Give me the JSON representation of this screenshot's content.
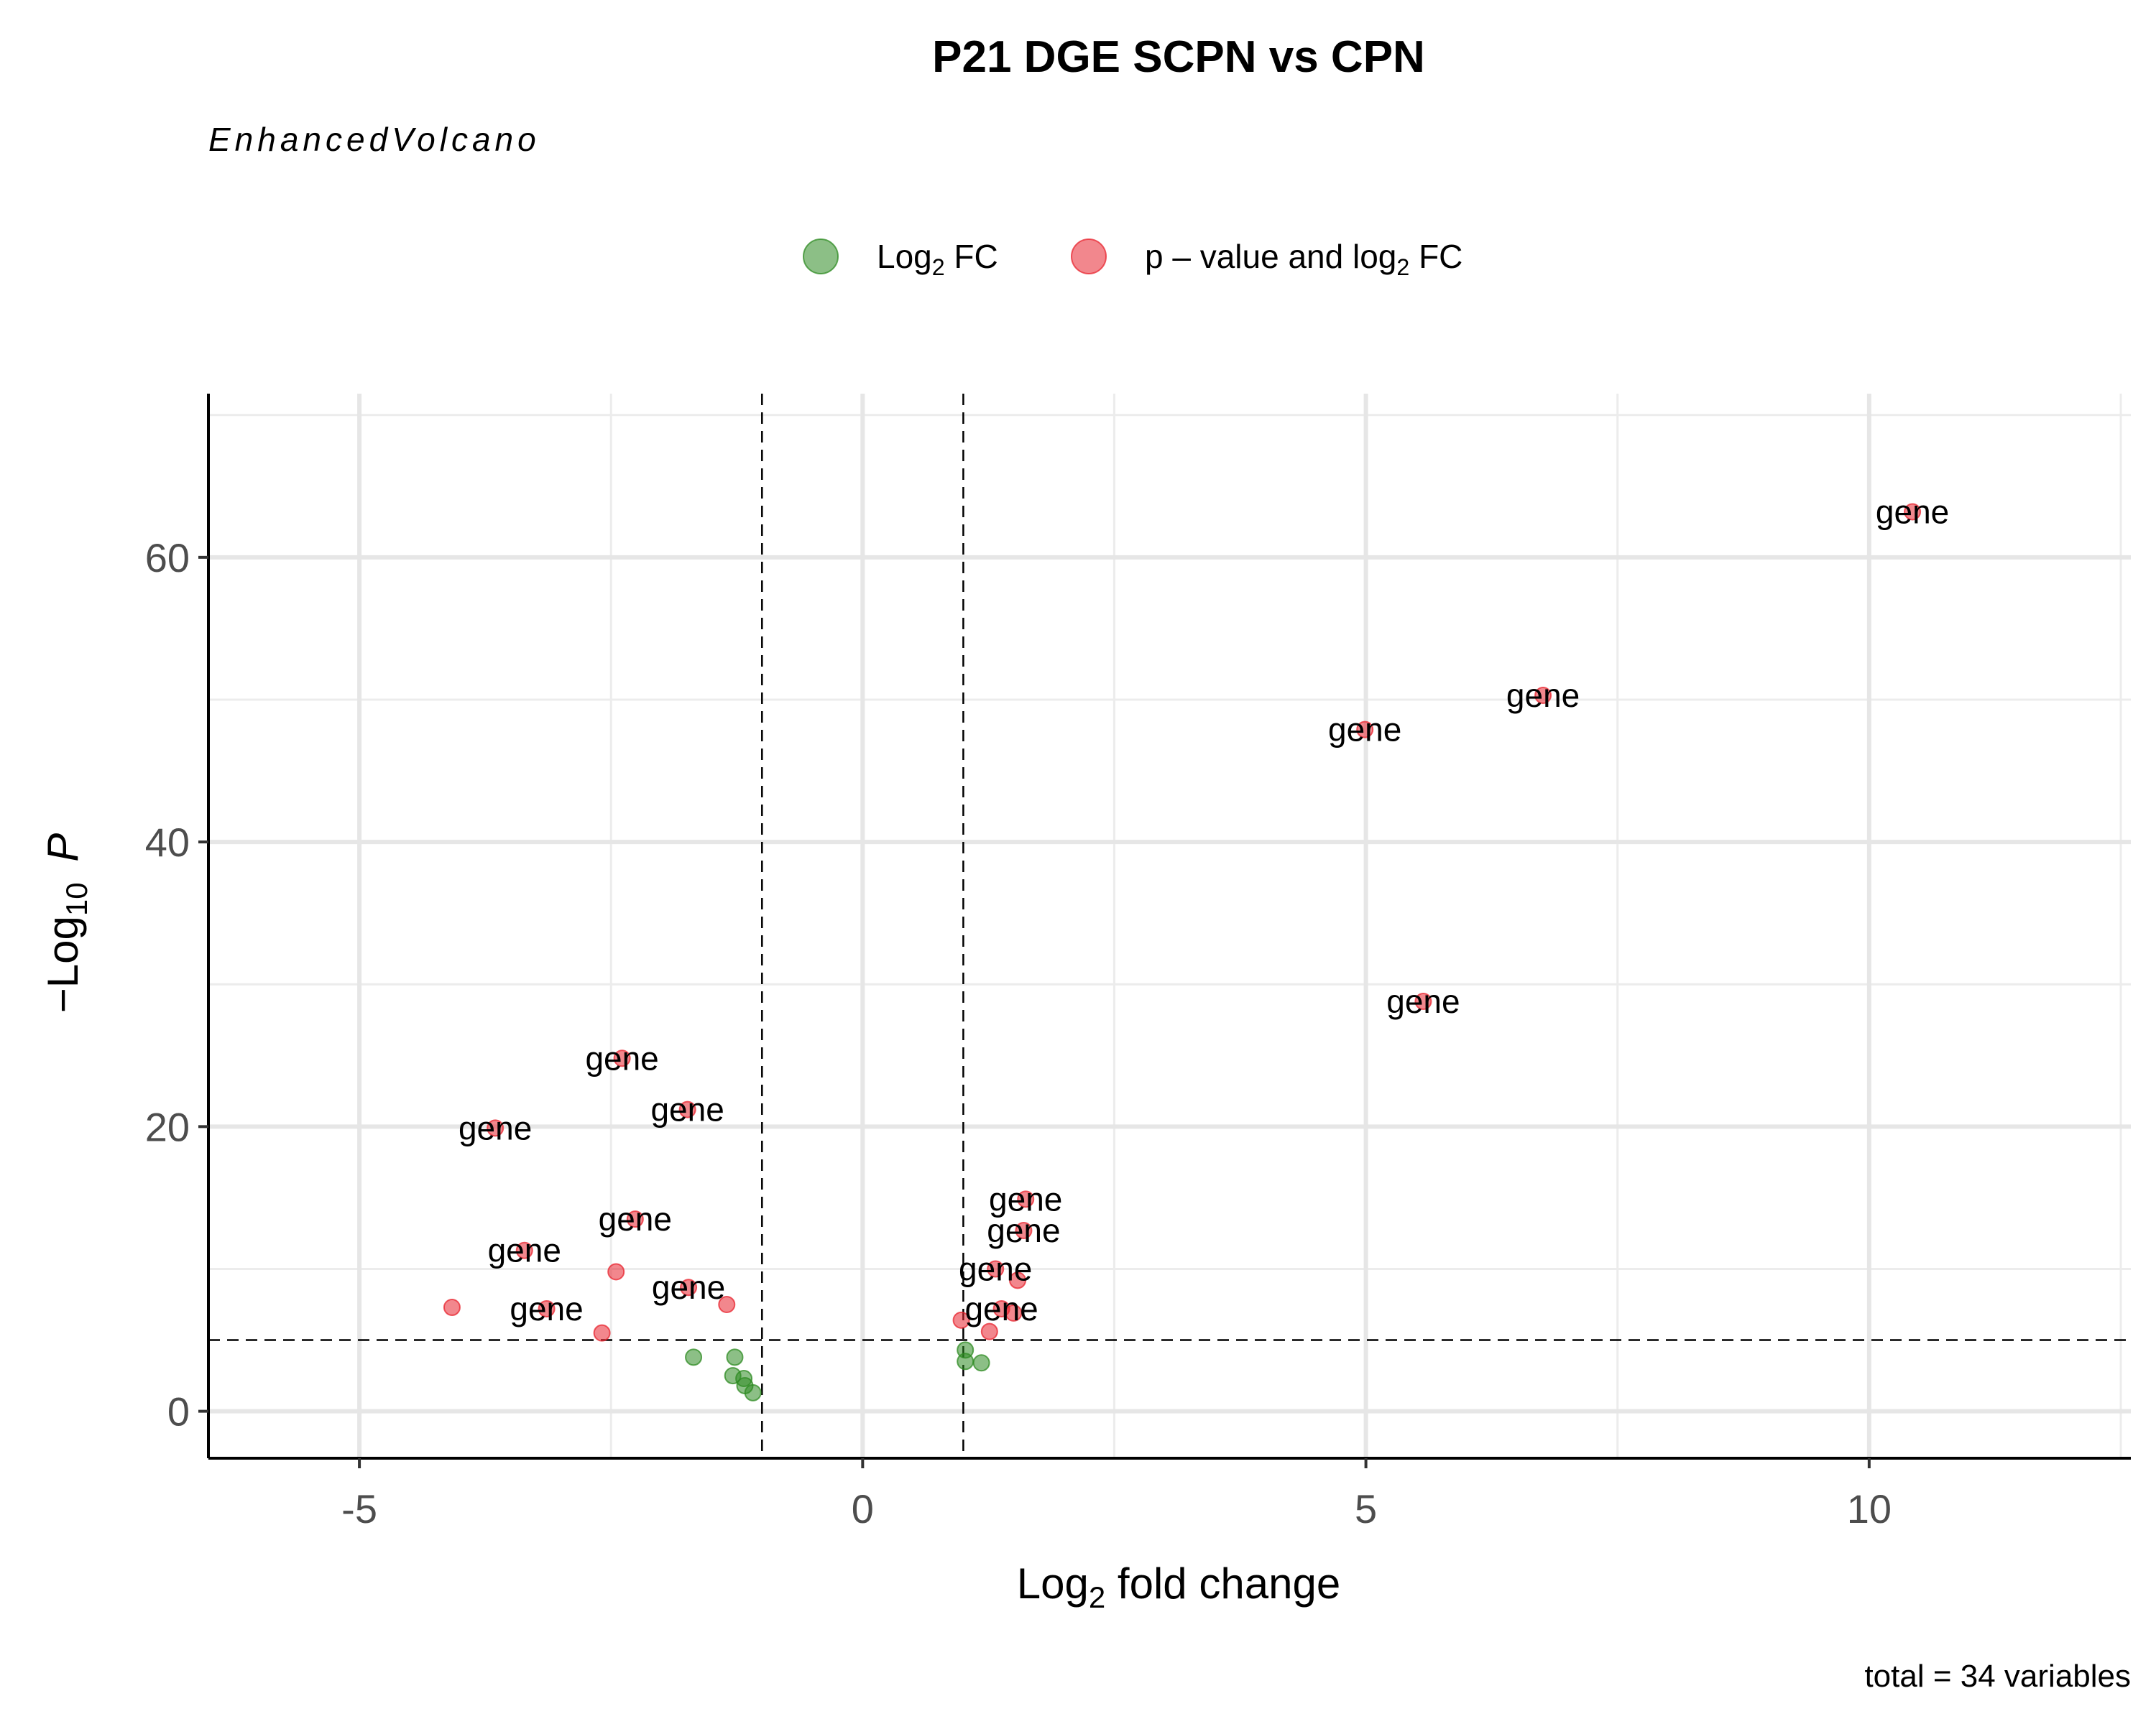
{
  "chart_data": {
    "type": "scatter",
    "title": "P21 DGE SCPN vs CPN",
    "subtitle": "EnhancedVolcano",
    "caption": "total = 34 variables",
    "xlabel": {
      "base": "Log",
      "sub": "2",
      "rest": " fold change"
    },
    "ylabel": {
      "minus": "−Log",
      "sub": "10",
      "italic": "P"
    },
    "xlim": [
      -6.5,
      12.6
    ],
    "ylim": [
      -3.3,
      71.5
    ],
    "x_ticks": [
      -5,
      0,
      5,
      10
    ],
    "x_tick_labels": [
      "-5",
      "0",
      "5",
      "10"
    ],
    "y_ticks": [
      0,
      20,
      40,
      60
    ],
    "y_tick_labels": [
      "0",
      "20",
      "40",
      "60"
    ],
    "x_minor": [
      -2.5,
      2.5,
      7.5,
      12.5
    ],
    "y_minor": [
      10,
      30,
      50,
      70
    ],
    "fc_cutoff": [
      -1,
      1
    ],
    "p_cutoff": 5,
    "grid": true,
    "legend_position": "top",
    "legend": [
      {
        "key": "fc",
        "label_base": "Log",
        "label_sub": "2",
        "label_rest": " FC",
        "color": "#2e8b22"
      },
      {
        "key": "both",
        "label_base": "p – value and log",
        "label_sub": "2",
        "label_rest": " FC",
        "color": "#e8242f"
      }
    ],
    "point_label": "gene",
    "series": [
      {
        "name": "Log2 FC",
        "color": "#2e8b22",
        "points": [
          {
            "x": -1.68,
            "y": 3.8
          },
          {
            "x": -1.27,
            "y": 3.8
          },
          {
            "x": -1.29,
            "y": 2.5
          },
          {
            "x": -1.18,
            "y": 2.3
          },
          {
            "x": -1.17,
            "y": 1.8
          },
          {
            "x": -1.09,
            "y": 1.3
          },
          {
            "x": 1.02,
            "y": 4.3
          },
          {
            "x": 1.02,
            "y": 3.5
          },
          {
            "x": 1.18,
            "y": 3.4
          }
        ]
      },
      {
        "name": "p-value and log2 FC",
        "color": "#e8242f",
        "points": [
          {
            "x": 10.43,
            "y": 63.2,
            "label": true
          },
          {
            "x": 6.76,
            "y": 50.3,
            "label": true
          },
          {
            "x": 4.99,
            "y": 47.9,
            "label": true
          },
          {
            "x": 5.57,
            "y": 28.8,
            "label": true
          },
          {
            "x": -2.39,
            "y": 24.8,
            "label": true
          },
          {
            "x": -1.74,
            "y": 21.2,
            "label": true
          },
          {
            "x": -3.65,
            "y": 19.9,
            "label": true
          },
          {
            "x": 1.62,
            "y": 14.9,
            "label": true
          },
          {
            "x": -2.26,
            "y": 13.5,
            "label": true
          },
          {
            "x": 1.6,
            "y": 12.7,
            "label": true
          },
          {
            "x": -3.36,
            "y": 11.3,
            "label": true
          },
          {
            "x": 1.32,
            "y": 10.0,
            "label": true
          },
          {
            "x": 1.54,
            "y": 9.2
          },
          {
            "x": -2.45,
            "y": 9.8
          },
          {
            "x": -1.73,
            "y": 8.7,
            "label": true
          },
          {
            "x": -1.35,
            "y": 7.5
          },
          {
            "x": -4.08,
            "y": 7.3
          },
          {
            "x": -3.14,
            "y": 7.2,
            "label": true
          },
          {
            "x": 1.38,
            "y": 7.2,
            "label": true
          },
          {
            "x": 1.5,
            "y": 6.9
          },
          {
            "x": 0.98,
            "y": 6.4
          },
          {
            "x": 1.26,
            "y": 5.6
          },
          {
            "x": -2.59,
            "y": 5.5
          }
        ]
      }
    ]
  }
}
